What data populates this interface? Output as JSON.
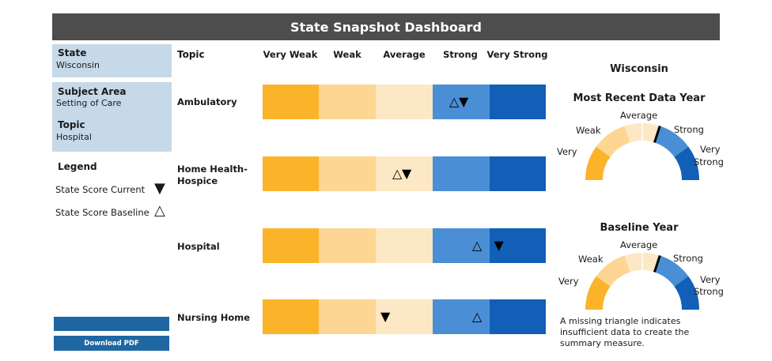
{
  "title": "State Snapshot Dashboard",
  "sidebar": {
    "state_label": "State",
    "state_value": "Wisconsin",
    "subject_area_label": "Subject Area",
    "subject_area_value": "Setting of Care",
    "topic_label": "Topic",
    "topic_value": "Hospital",
    "legend_title": "Legend",
    "legend_current": "State Score Current",
    "legend_baseline": "State Score Baseline",
    "download_label": "Download PDF"
  },
  "table": {
    "topic_header": "Topic",
    "columns": [
      "Very Weak",
      "Weak",
      "Average",
      "Strong",
      "Very Strong"
    ],
    "rows": [
      {
        "label": "Ambulatory",
        "baseline_level": 3,
        "current_level": 3
      },
      {
        "label": "Home Health-Hospice",
        "baseline_level": 2,
        "current_level": 2
      },
      {
        "label": "Hospital",
        "baseline_level": 3,
        "current_level": 4
      },
      {
        "label": "Nursing Home",
        "baseline_level": 3,
        "current_level": 2
      }
    ]
  },
  "gauges": {
    "state_name": "Wisconsin",
    "recent_title": "Most Recent Data Year",
    "baseline_title": "Baseline Year",
    "labels": {
      "very": "Very",
      "weak": "Weak",
      "average": "Average",
      "strong": "Strong",
      "very_strong_1": "Very",
      "very_strong_2": "Strong"
    },
    "recent_level": 3,
    "baseline_level": 3,
    "note": "A missing triangle indicates insufficient data to create the summary measure."
  },
  "colors": {
    "very_weak": "#fbb42a",
    "weak": "#fcd692",
    "average": "#fce8c4",
    "strong": "#4a8fd6",
    "very_strong": "#115fb6",
    "header_bg": "#4d4d4d",
    "panel_bg": "#c6d9e8"
  }
}
